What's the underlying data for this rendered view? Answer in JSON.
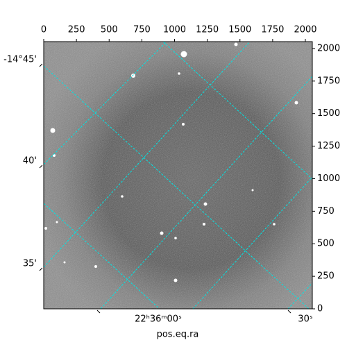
{
  "chart_data": {
    "type": "image",
    "x_label": "pos.eq.ra",
    "xlim": [
      0,
      2053
    ],
    "ylim": [
      0,
      2053
    ],
    "xticks": [
      0,
      250,
      500,
      750,
      1000,
      1250,
      1500,
      1750,
      2000
    ],
    "yticks": [
      0,
      250,
      500,
      750,
      1000,
      1250,
      1500,
      1750,
      2000
    ],
    "ra_ticks": [
      "22ʰ36ᵐ00ˢ",
      "30ˢ"
    ],
    "dec_ticks": [
      "-14°45'",
      "40'",
      "35'"
    ],
    "grid_color": "#00e5e5"
  }
}
